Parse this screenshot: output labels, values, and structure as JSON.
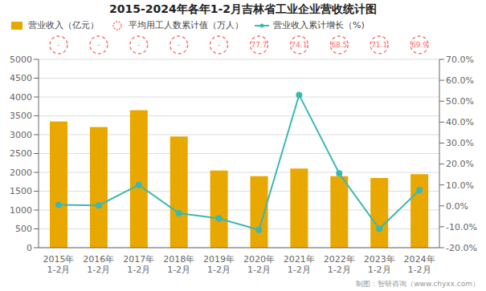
{
  "chart_data": {
    "type": "bar",
    "title": "2015-2024年各年1-2月吉林省工业企业营收统计图",
    "categories": [
      "2015年\n1-2月",
      "2016年\n1-2月",
      "2017年\n1-2月",
      "2018年\n1-2月",
      "2019年\n1-2月",
      "2020年\n1-2月",
      "2021年\n1-2月",
      "2022年\n1-2月",
      "2023年\n1-2月",
      "2024年\n1-2月"
    ],
    "series": [
      {
        "name": "营业收入（亿元）",
        "type": "bar",
        "color": "#E8A800",
        "values": [
          3350,
          3200,
          3650,
          2950,
          2050,
          1900,
          2100,
          1900,
          1850,
          1950
        ]
      },
      {
        "name": "平均用工人数累计值（万人）",
        "type": "annotation",
        "color": "#FF6B6B",
        "line_style": "dashed",
        "values": [
          null,
          null,
          null,
          null,
          null,
          77.7,
          74.1,
          68.5,
          71.1,
          69.9
        ],
        "value_labels": [
          "-",
          "-",
          "-",
          "-",
          "-",
          "77.7",
          "74.1",
          "68.5",
          "71.1",
          "69.9"
        ]
      },
      {
        "name": "营业收入累计增长（%)",
        "type": "line",
        "axis": "y2",
        "color": "#3CB8B2",
        "marker": "circle",
        "values": [
          0.5,
          0.2,
          10.0,
          -3.5,
          -6.0,
          -11.5,
          53.0,
          15.5,
          -11.0,
          7.5
        ]
      }
    ],
    "ylim": [
      0,
      5000
    ],
    "yticks": [
      0,
      500,
      1000,
      1500,
      2000,
      2500,
      3000,
      3500,
      4000,
      4500,
      5000
    ],
    "y2lim": [
      -20,
      70
    ],
    "y2ticks": [
      {
        "value": -20,
        "label": "-20.0%"
      },
      {
        "value": -10,
        "label": "-10.0%"
      },
      {
        "value": 0,
        "label": "0.0%"
      },
      {
        "value": 10,
        "label": "10.0%"
      },
      {
        "value": 20,
        "label": "20.0%"
      },
      {
        "value": 30,
        "label": "30.0%"
      },
      {
        "value": 40,
        "label": "40.0%"
      },
      {
        "value": 50,
        "label": "50.0%"
      },
      {
        "value": 60,
        "label": "60.0%"
      },
      {
        "value": 70,
        "label": "70.0%"
      }
    ],
    "grid": true,
    "legend": "upper left",
    "annotations": [
      "制图：智研咨询（www.chyxx.com）"
    ]
  }
}
